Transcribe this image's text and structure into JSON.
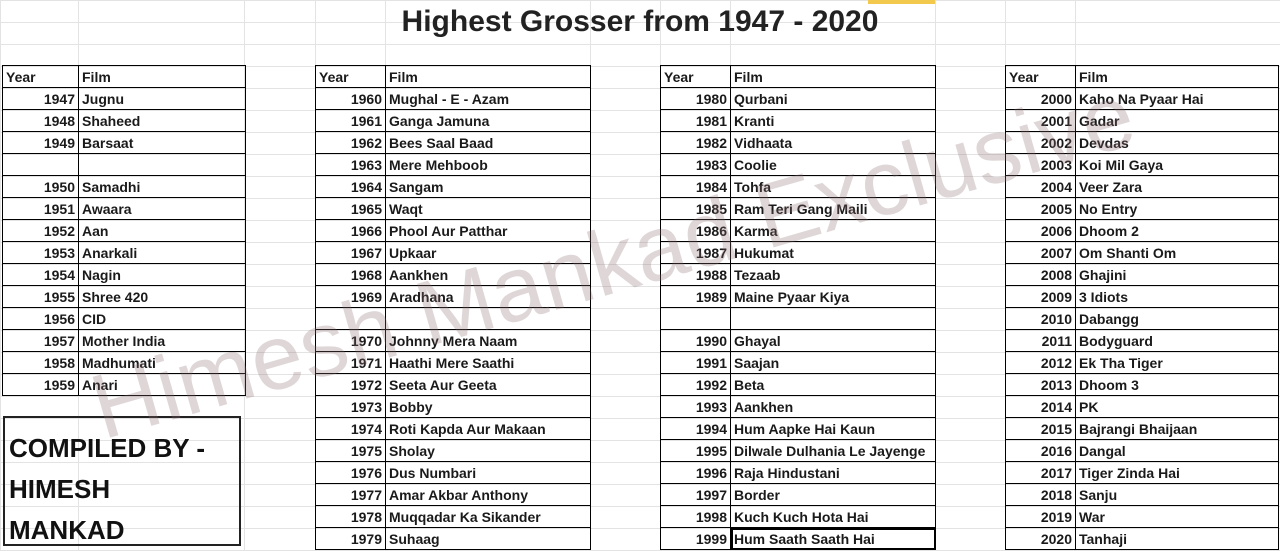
{
  "title": "Highest Grosser from 1947 - 2020",
  "headers": {
    "year": "Year",
    "film": "Film"
  },
  "col1a": [
    {
      "year": "1947",
      "film": "Jugnu"
    },
    {
      "year": "1948",
      "film": "Shaheed"
    },
    {
      "year": "1949",
      "film": "Barsaat"
    }
  ],
  "col1b": [
    {
      "year": "1950",
      "film": "Samadhi"
    },
    {
      "year": "1951",
      "film": "Awaara"
    },
    {
      "year": "1952",
      "film": "Aan"
    },
    {
      "year": "1953",
      "film": "Anarkali"
    },
    {
      "year": "1954",
      "film": "Nagin"
    },
    {
      "year": "1955",
      "film": "Shree 420"
    },
    {
      "year": "1956",
      "film": "CID"
    },
    {
      "year": "1957",
      "film": "Mother India"
    },
    {
      "year": "1958",
      "film": "Madhumati"
    },
    {
      "year": "1959",
      "film": "Anari"
    }
  ],
  "col2a": [
    {
      "year": "1960",
      "film": "Mughal - E - Azam"
    },
    {
      "year": "1961",
      "film": "Ganga Jamuna"
    },
    {
      "year": "1962",
      "film": "Bees Saal Baad"
    },
    {
      "year": "1963",
      "film": "Mere Mehboob"
    },
    {
      "year": "1964",
      "film": "Sangam"
    },
    {
      "year": "1965",
      "film": "Waqt"
    },
    {
      "year": "1966",
      "film": "Phool Aur Patthar"
    },
    {
      "year": "1967",
      "film": "Upkaar"
    },
    {
      "year": "1968",
      "film": "Aankhen"
    },
    {
      "year": "1969",
      "film": "Aradhana"
    }
  ],
  "col2b": [
    {
      "year": "1970",
      "film": "Johnny Mera Naam"
    },
    {
      "year": "1971",
      "film": "Haathi Mere Saathi"
    },
    {
      "year": "1972",
      "film": "Seeta Aur Geeta"
    },
    {
      "year": "1973",
      "film": "Bobby"
    },
    {
      "year": "1974",
      "film": "Roti Kapda Aur Makaan"
    },
    {
      "year": "1975",
      "film": "Sholay"
    },
    {
      "year": "1976",
      "film": "Dus Numbari"
    },
    {
      "year": "1977",
      "film": "Amar Akbar Anthony"
    },
    {
      "year": "1978",
      "film": "Muqqadar Ka Sikander"
    },
    {
      "year": "1979",
      "film": "Suhaag"
    }
  ],
  "col3a": [
    {
      "year": "1980",
      "film": "Qurbani"
    },
    {
      "year": "1981",
      "film": "Kranti"
    },
    {
      "year": "1982",
      "film": "Vidhaata"
    },
    {
      "year": "1983",
      "film": "Coolie"
    },
    {
      "year": "1984",
      "film": "Tohfa"
    },
    {
      "year": "1985",
      "film": "Ram Teri Gang Maili"
    },
    {
      "year": "1986",
      "film": "Karma"
    },
    {
      "year": "1987",
      "film": "Hukumat"
    },
    {
      "year": "1988",
      "film": "Tezaab"
    },
    {
      "year": "1989",
      "film": "Maine Pyaar Kiya"
    }
  ],
  "col3b": [
    {
      "year": "1990",
      "film": "Ghayal"
    },
    {
      "year": "1991",
      "film": "Saajan"
    },
    {
      "year": "1992",
      "film": "Beta"
    },
    {
      "year": "1993",
      "film": "Aankhen"
    },
    {
      "year": "1994",
      "film": "Hum Aapke Hai Kaun"
    },
    {
      "year": "1995",
      "film": "Dilwale Dulhania Le Jayenge"
    },
    {
      "year": "1996",
      "film": "Raja Hindustani"
    },
    {
      "year": "1997",
      "film": "Border"
    },
    {
      "year": "1998",
      "film": "Kuch Kuch Hota Hai"
    },
    {
      "year": "1999",
      "film": "Hum Saath Saath Hai"
    }
  ],
  "col4": [
    {
      "year": "2000",
      "film": "Kaho Na Pyaar Hai"
    },
    {
      "year": "2001",
      "film": "Gadar"
    },
    {
      "year": "2002",
      "film": "Devdas"
    },
    {
      "year": "2003",
      "film": "Koi Mil Gaya"
    },
    {
      "year": "2004",
      "film": "Veer Zara"
    },
    {
      "year": "2005",
      "film": "No Entry"
    },
    {
      "year": "2006",
      "film": "Dhoom 2"
    },
    {
      "year": "2007",
      "film": "Om Shanti Om"
    },
    {
      "year": "2008",
      "film": "Ghajini"
    },
    {
      "year": "2009",
      "film": "3 Idiots"
    },
    {
      "year": "2010",
      "film": "Dabangg"
    },
    {
      "year": "2011",
      "film": "Bodyguard"
    },
    {
      "year": "2012",
      "film": "Ek Tha Tiger"
    },
    {
      "year": "2013",
      "film": "Dhoom 3"
    },
    {
      "year": "2014",
      "film": "PK"
    },
    {
      "year": "2015",
      "film": "Bajrangi Bhaijaan"
    },
    {
      "year": "2016",
      "film": "Dangal"
    },
    {
      "year": "2017",
      "film": "Tiger Zinda Hai"
    },
    {
      "year": "2018",
      "film": "Sanju"
    },
    {
      "year": "2019",
      "film": "War"
    },
    {
      "year": "2020",
      "film": "Tanhaji"
    }
  ],
  "compiled": {
    "line1": "COMPILED BY -",
    "line2": "HIMESH",
    "line3": "MANKAD"
  },
  "watermark": "Himesh Mankad Exclusive"
}
